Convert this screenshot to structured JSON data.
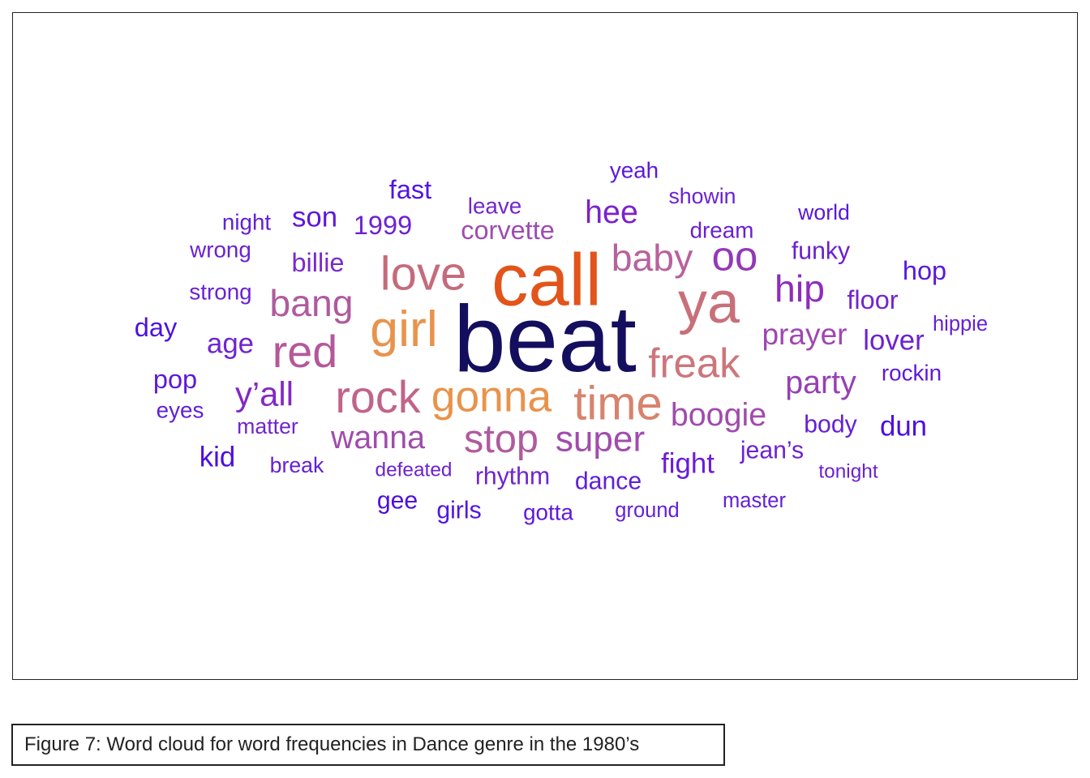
{
  "caption": "Figure 7: Word cloud for word frequencies in Dance genre in the 1980’s",
  "chart_data": {
    "type": "wordcloud",
    "title": "",
    "words": [
      {
        "text": "beat",
        "weight": 100,
        "color": "#140e5e"
      },
      {
        "text": "call",
        "weight": 78,
        "color": "#e2541a"
      },
      {
        "text": "ya",
        "weight": 62,
        "color": "#c8707a"
      },
      {
        "text": "girl",
        "weight": 54,
        "color": "#e8934c"
      },
      {
        "text": "love",
        "weight": 50,
        "color": "#c46c7c"
      },
      {
        "text": "time",
        "weight": 50,
        "color": "#d8836c"
      },
      {
        "text": "red",
        "weight": 48,
        "color": "#b4589a"
      },
      {
        "text": "rock",
        "weight": 48,
        "color": "#c0648a"
      },
      {
        "text": "gonna",
        "weight": 46,
        "color": "#e8934c"
      },
      {
        "text": "freak",
        "weight": 44,
        "color": "#cc767c"
      },
      {
        "text": "oo",
        "weight": 44,
        "color": "#9438b8"
      },
      {
        "text": "stop",
        "weight": 42,
        "color": "#b05a9e"
      },
      {
        "text": "baby",
        "weight": 40,
        "color": "#b8629c"
      },
      {
        "text": "bang",
        "weight": 40,
        "color": "#b05a9e"
      },
      {
        "text": "hip",
        "weight": 40,
        "color": "#8e2cbc"
      },
      {
        "text": "super",
        "weight": 38,
        "color": "#a24cac"
      },
      {
        "text": "y’all",
        "weight": 36,
        "color": "#8228c4"
      },
      {
        "text": "party",
        "weight": 34,
        "color": "#9640b4"
      },
      {
        "text": "boogie",
        "weight": 34,
        "color": "#a04cac"
      },
      {
        "text": "wanna",
        "weight": 34,
        "color": "#a04cac"
      },
      {
        "text": "prayer",
        "weight": 32,
        "color": "#9e48b0"
      },
      {
        "text": "hee",
        "weight": 34,
        "color": "#7a22cc"
      },
      {
        "text": "fight",
        "weight": 30,
        "color": "#6a1cd8"
      },
      {
        "text": "age",
        "weight": 30,
        "color": "#7024d0"
      },
      {
        "text": "billie",
        "weight": 28,
        "color": "#7a2ac8"
      },
      {
        "text": "son",
        "weight": 30,
        "color": "#5e16dc"
      },
      {
        "text": "lover",
        "weight": 30,
        "color": "#6c22d2"
      },
      {
        "text": "kid",
        "weight": 30,
        "color": "#4a10e0"
      },
      {
        "text": "dun",
        "weight": 30,
        "color": "#4c10e0"
      },
      {
        "text": "floor",
        "weight": 28,
        "color": "#7226cc"
      },
      {
        "text": "hop",
        "weight": 28,
        "color": "#5a18dc"
      },
      {
        "text": "corvette",
        "weight": 28,
        "color": "#9e4cb0"
      },
      {
        "text": "pop",
        "weight": 28,
        "color": "#5c18dc"
      },
      {
        "text": "day",
        "weight": 28,
        "color": "#4c12e0"
      },
      {
        "text": "fast",
        "weight": 28,
        "color": "#5214e0"
      },
      {
        "text": "1999",
        "weight": 28,
        "color": "#6e22d0"
      },
      {
        "text": "rhythm",
        "weight": 26,
        "color": "#7024d0"
      },
      {
        "text": "dance",
        "weight": 26,
        "color": "#6020d8"
      },
      {
        "text": "jean’s",
        "weight": 26,
        "color": "#6c22d2"
      },
      {
        "text": "body",
        "weight": 26,
        "color": "#6420d6"
      },
      {
        "text": "girls",
        "weight": 26,
        "color": "#5216e0"
      },
      {
        "text": "gee",
        "weight": 26,
        "color": "#4c10e0"
      },
      {
        "text": "funky",
        "weight": 26,
        "color": "#6a20d2"
      },
      {
        "text": "dream",
        "weight": 24,
        "color": "#6a20d2"
      },
      {
        "text": "leave",
        "weight": 24,
        "color": "#7226cc"
      },
      {
        "text": "eyes",
        "weight": 24,
        "color": "#6020d8"
      },
      {
        "text": "yeah",
        "weight": 24,
        "color": "#5c18dc"
      },
      {
        "text": "gotta",
        "weight": 24,
        "color": "#5e18da"
      },
      {
        "text": "rockin",
        "weight": 24,
        "color": "#5e18da"
      },
      {
        "text": "night",
        "weight": 24,
        "color": "#6420d6"
      },
      {
        "text": "wrong",
        "weight": 24,
        "color": "#6a22d2"
      },
      {
        "text": "strong",
        "weight": 24,
        "color": "#6a22d2"
      },
      {
        "text": "matter",
        "weight": 23,
        "color": "#7026cc"
      },
      {
        "text": "break",
        "weight": 23,
        "color": "#6420d6"
      },
      {
        "text": "world",
        "weight": 23,
        "color": "#5a18dc"
      },
      {
        "text": "showin",
        "weight": 23,
        "color": "#6a22d2"
      },
      {
        "text": "hippie",
        "weight": 22,
        "color": "#6420d6"
      },
      {
        "text": "master",
        "weight": 22,
        "color": "#6420d6"
      },
      {
        "text": "ground",
        "weight": 22,
        "color": "#6420d6"
      },
      {
        "text": "tonight",
        "weight": 21,
        "color": "#6a22d2"
      },
      {
        "text": "defeated",
        "weight": 21,
        "color": "#6a22d2"
      }
    ]
  }
}
